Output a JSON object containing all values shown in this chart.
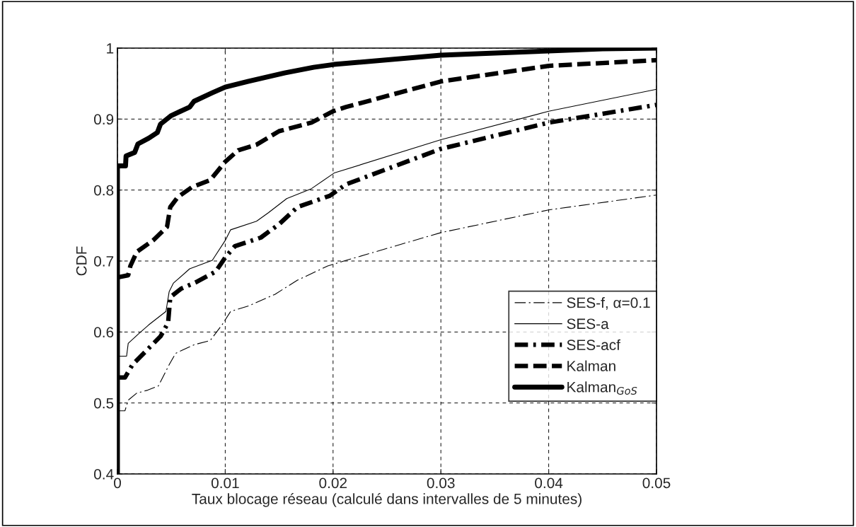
{
  "chart_data": {
    "type": "line",
    "xlabel": "Taux blocage réseau (calculé dans intervalles de 5 minutes)",
    "ylabel": "CDF",
    "xlim": [
      0,
      0.05
    ],
    "xticks": [
      0,
      0.01,
      0.02,
      0.03,
      0.04,
      0.05
    ],
    "ylim": [
      0.4,
      1
    ],
    "yticks": [
      0.4,
      0.5,
      0.6,
      0.7,
      0.8,
      0.9,
      1
    ],
    "grid": true,
    "legend": "right",
    "series": [
      {
        "name": "SES-f, α=0.1",
        "color": "#000000",
        "line_style": "dashed",
        "x": [
          0,
          0.0007,
          0.001,
          0.0018,
          0.0028,
          0.0038,
          0.0048,
          0.0054,
          0.0071,
          0.0086,
          0.0097,
          0.0105,
          0.0122,
          0.0146,
          0.0167,
          0.0195,
          0.021,
          0.03,
          0.04,
          0.05
        ],
        "values": [
          0.489,
          0.489,
          0.504,
          0.514,
          0.518,
          0.524,
          0.554,
          0.57,
          0.582,
          0.588,
          0.61,
          0.629,
          0.637,
          0.653,
          0.673,
          0.693,
          0.7,
          0.74,
          0.772,
          0.793
        ]
      },
      {
        "name": "SES-a",
        "color": "#000000",
        "line_style": "solid",
        "x": [
          0,
          0.00085,
          0.001,
          0.002,
          0.0029,
          0.0045,
          0.0048,
          0.0052,
          0.0067,
          0.0088,
          0.01,
          0.0105,
          0.0129,
          0.014,
          0.0157,
          0.018,
          0.0201,
          0.03,
          0.04,
          0.05
        ],
        "values": [
          0.566,
          0.566,
          0.584,
          0.598,
          0.61,
          0.629,
          0.657,
          0.669,
          0.689,
          0.701,
          0.729,
          0.744,
          0.756,
          0.768,
          0.788,
          0.802,
          0.824,
          0.871,
          0.911,
          0.942
        ]
      },
      {
        "name": "SES-acf",
        "color": "#000000",
        "line_style": "dashdot",
        "x": [
          0,
          0.0007,
          0.0014,
          0.0027,
          0.004,
          0.0047,
          0.0049,
          0.0059,
          0.0074,
          0.0091,
          0.01,
          0.0109,
          0.0133,
          0.015,
          0.0167,
          0.0197,
          0.0212,
          0.03,
          0.04,
          0.05
        ],
        "values": [
          0.536,
          0.536,
          0.554,
          0.574,
          0.594,
          0.613,
          0.649,
          0.661,
          0.671,
          0.685,
          0.705,
          0.721,
          0.733,
          0.752,
          0.776,
          0.792,
          0.808,
          0.858,
          0.895,
          0.92
        ]
      },
      {
        "name": "Kalman",
        "color": "#000000",
        "line_style": "dashed",
        "x": [
          0,
          0.001,
          0.0012,
          0.0018,
          0.0033,
          0.0046,
          0.0049,
          0.0056,
          0.0069,
          0.0086,
          0.01,
          0.0112,
          0.0129,
          0.015,
          0.018,
          0.02,
          0.0212,
          0.03,
          0.04,
          0.05
        ],
        "values": [
          0.677,
          0.68,
          0.693,
          0.713,
          0.729,
          0.748,
          0.776,
          0.79,
          0.804,
          0.814,
          0.84,
          0.856,
          0.864,
          0.883,
          0.895,
          0.911,
          0.917,
          0.953,
          0.975,
          0.983
        ]
      },
      {
        "name": "Kalman$_{GoS}$",
        "color": "#000000",
        "line_style": "solid",
        "x": [
          0,
          0,
          0.00075,
          0.0008,
          0.0016,
          0.0019,
          0.0029,
          0.0037,
          0.004,
          0.005,
          0.0067,
          0.0071,
          0.0088,
          0.01,
          0.0121,
          0.0155,
          0.0182,
          0.0201,
          0.03,
          0.04,
          0.045,
          0.05
        ],
        "values": [
          0.4,
          0.834,
          0.834,
          0.848,
          0.853,
          0.865,
          0.873,
          0.881,
          0.893,
          0.905,
          0.917,
          0.925,
          0.937,
          0.945,
          0.953,
          0.965,
          0.973,
          0.977,
          0.99,
          0.996,
          0.999,
          1
        ]
      }
    ]
  }
}
